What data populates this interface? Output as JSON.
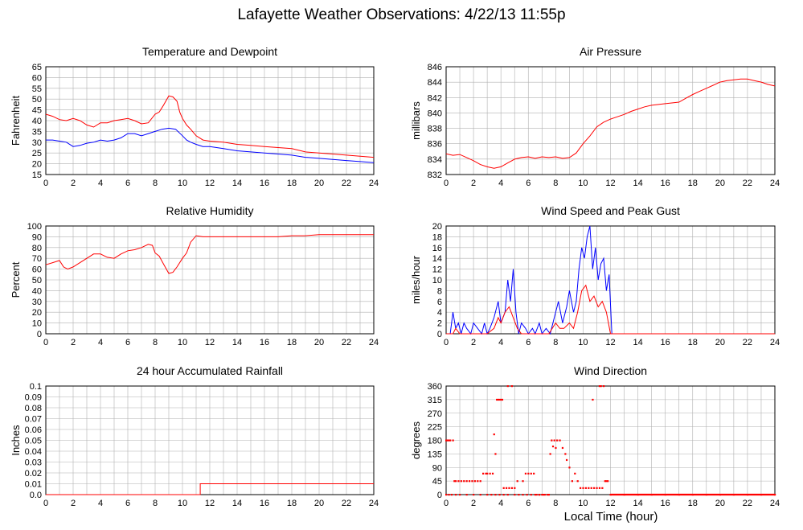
{
  "page": {
    "title": "Lafayette Weather Observations: 4/22/13 11:55p",
    "footer_xlabel": "Local Time (hour)"
  },
  "colors": {
    "red": "#ff0000",
    "blue": "#0000ff",
    "grid": "#b0b0b0",
    "axis": "#000000"
  },
  "chart_data": [
    {
      "type": "line",
      "title": "Temperature and Dewpoint",
      "ylabel": "Fahrenheit",
      "xlabel": "",
      "xlim": [
        0,
        24
      ],
      "ylim": [
        15,
        65
      ],
      "xticks": [
        0,
        2,
        4,
        6,
        8,
        10,
        12,
        14,
        16,
        18,
        20,
        22,
        24
      ],
      "yticks": [
        15,
        20,
        25,
        30,
        35,
        40,
        45,
        50,
        55,
        60,
        65
      ],
      "series": [
        {
          "color": "#ff0000",
          "x": [
            0,
            0.5,
            1,
            1.5,
            2,
            2.5,
            3,
            3.5,
            4,
            4.5,
            5,
            5.5,
            6,
            6.5,
            7,
            7.5,
            8,
            8.3,
            8.6,
            9,
            9.3,
            9.6,
            9.8,
            10,
            10.3,
            10.6,
            11,
            11.5,
            12,
            13,
            14,
            15,
            16,
            17,
            18,
            19,
            20,
            21,
            22,
            23,
            24
          ],
          "y": [
            43,
            42,
            40.5,
            40,
            41,
            40,
            38,
            37,
            39,
            39,
            40,
            40.5,
            41,
            40,
            38.5,
            39,
            43,
            44,
            47,
            51.5,
            51,
            49,
            44,
            41,
            38,
            36,
            33,
            31,
            30.5,
            30,
            29,
            28.5,
            28,
            27.5,
            27,
            25.5,
            25,
            24.5,
            24,
            23.5,
            23
          ]
        },
        {
          "color": "#0000ff",
          "x": [
            0,
            0.5,
            1,
            1.5,
            2,
            2.5,
            3,
            3.5,
            4,
            4.5,
            5,
            5.5,
            6,
            6.5,
            7,
            7.5,
            8,
            8.5,
            9,
            9.5,
            10,
            10.3,
            10.6,
            11,
            11.5,
            12,
            13,
            14,
            15,
            16,
            17,
            18,
            19,
            20,
            21,
            22,
            23,
            24
          ],
          "y": [
            31,
            31,
            30.5,
            30,
            28,
            28.5,
            29.5,
            30,
            31,
            30.5,
            31,
            32,
            34,
            34,
            33,
            34,
            35,
            36,
            36.5,
            36,
            33,
            31,
            30,
            29,
            28,
            28,
            27,
            26,
            25.5,
            25,
            24.5,
            24,
            23,
            22.5,
            22,
            21.5,
            21,
            20.5
          ]
        }
      ]
    },
    {
      "type": "line",
      "title": "Air Pressure",
      "ylabel": "millibars",
      "xlabel": "",
      "xlim": [
        0,
        24
      ],
      "ylim": [
        832,
        846
      ],
      "xticks": [
        0,
        2,
        4,
        6,
        8,
        10,
        12,
        14,
        16,
        18,
        20,
        22,
        24
      ],
      "yticks": [
        832,
        834,
        836,
        838,
        840,
        842,
        844,
        846
      ],
      "series": [
        {
          "color": "#ff0000",
          "x": [
            0,
            0.5,
            1,
            1.5,
            2,
            2.5,
            3,
            3.5,
            4,
            4.5,
            5,
            5.5,
            6,
            6.5,
            7,
            7.5,
            8,
            8.5,
            9,
            9.5,
            10,
            10.5,
            11,
            11.5,
            12,
            12.5,
            13,
            13.5,
            14,
            14.5,
            15,
            16,
            17,
            17.5,
            18,
            18.5,
            19,
            19.5,
            20,
            20.5,
            21,
            21.5,
            22,
            22.5,
            23,
            23.5,
            24
          ],
          "y": [
            834.7,
            834.5,
            834.6,
            834.2,
            833.8,
            833.3,
            833,
            832.8,
            833,
            833.5,
            834,
            834.2,
            834.3,
            834.1,
            834.3,
            834.2,
            834.3,
            834.1,
            834.2,
            834.8,
            836,
            837,
            838.2,
            838.8,
            839.2,
            839.5,
            839.8,
            840.2,
            840.5,
            840.8,
            841,
            841.2,
            841.4,
            841.9,
            842.4,
            842.8,
            843.2,
            843.6,
            844,
            844.2,
            844.3,
            844.4,
            844.4,
            844.2,
            844,
            843.7,
            843.5
          ]
        }
      ]
    },
    {
      "type": "line",
      "title": "Relative Humidity",
      "ylabel": "Percent",
      "xlabel": "",
      "xlim": [
        0,
        24
      ],
      "ylim": [
        0,
        100
      ],
      "xticks": [
        0,
        2,
        4,
        6,
        8,
        10,
        12,
        14,
        16,
        18,
        20,
        22,
        24
      ],
      "yticks": [
        0,
        10,
        20,
        30,
        40,
        50,
        60,
        70,
        80,
        90,
        100
      ],
      "series": [
        {
          "color": "#ff0000",
          "x": [
            0,
            0.5,
            1,
            1.3,
            1.6,
            2,
            2.5,
            3,
            3.5,
            4,
            4.5,
            5,
            5.5,
            6,
            6.5,
            7,
            7.5,
            7.8,
            8,
            8.3,
            8.6,
            9,
            9.3,
            9.6,
            10,
            10.3,
            10.6,
            11,
            11.5,
            12,
            13,
            14,
            15,
            16,
            17,
            18,
            19,
            20,
            21,
            22,
            23,
            24
          ],
          "y": [
            64,
            66,
            68,
            62,
            60,
            62,
            66,
            70,
            74,
            74,
            71,
            70,
            74,
            77,
            78,
            80,
            83,
            82,
            75,
            72,
            65,
            56,
            57,
            62,
            70,
            75,
            85,
            91,
            90,
            90,
            90,
            90,
            90,
            90,
            90,
            91,
            91,
            92,
            92,
            92,
            92,
            92
          ]
        }
      ]
    },
    {
      "type": "line",
      "title": "Wind Speed and Peak Gust",
      "ylabel": "miles/hour",
      "xlabel": "",
      "xlim": [
        0,
        24
      ],
      "ylim": [
        0,
        20
      ],
      "xticks": [
        0,
        2,
        4,
        6,
        8,
        10,
        12,
        14,
        16,
        18,
        20,
        22,
        24
      ],
      "yticks": [
        0,
        2,
        4,
        6,
        8,
        10,
        12,
        14,
        16,
        18,
        20
      ],
      "series": [
        {
          "color": "#0000ff",
          "x": [
            0,
            0.3,
            0.5,
            0.7,
            0.9,
            1.1,
            1.3,
            1.5,
            1.8,
            2.0,
            2.3,
            2.6,
            2.8,
            3.0,
            3.2,
            3.5,
            3.8,
            4.0,
            4.3,
            4.5,
            4.7,
            4.9,
            5.1,
            5.3,
            5.5,
            5.8,
            6.0,
            6.3,
            6.5,
            6.8,
            7.0,
            7.3,
            7.6,
            7.9,
            8.2,
            8.5,
            8.8,
            9.0,
            9.3,
            9.5,
            9.7,
            9.9,
            10.1,
            10.3,
            10.5,
            10.7,
            10.9,
            11.1,
            11.3,
            11.5,
            11.7,
            11.9,
            12.1,
            12.5,
            24
          ],
          "y": [
            0,
            0,
            4,
            1,
            2,
            0,
            2,
            1,
            0,
            2,
            1,
            0,
            2,
            0,
            1,
            3,
            6,
            2,
            4,
            10,
            6,
            12,
            4,
            0,
            2,
            1,
            0,
            1,
            0,
            2,
            0,
            1,
            0,
            3,
            6,
            2,
            5,
            8,
            4,
            6,
            12,
            16,
            14,
            18,
            20,
            12,
            16,
            10,
            13,
            14,
            8,
            11,
            0,
            0,
            0
          ]
        },
        {
          "color": "#ff0000",
          "x": [
            0,
            0.5,
            0.7,
            1.0,
            1.5,
            2.0,
            2.5,
            3.0,
            3.5,
            3.8,
            4.0,
            4.3,
            4.6,
            4.9,
            5.2,
            5.5,
            6.0,
            7.0,
            7.5,
            8.0,
            8.3,
            8.6,
            9.0,
            9.3,
            9.6,
            9.9,
            10.2,
            10.5,
            10.8,
            11.1,
            11.4,
            11.7,
            12.0,
            12.5,
            24
          ],
          "y": [
            0,
            0,
            1,
            0,
            0,
            0,
            0,
            0,
            1,
            3,
            2,
            4,
            5,
            3,
            1,
            0,
            0,
            0,
            0,
            2,
            1,
            1,
            2,
            1,
            4,
            8,
            9,
            6,
            7,
            5,
            6,
            4,
            0,
            0,
            0
          ]
        }
      ]
    },
    {
      "type": "line",
      "title": "24 hour Accumulated Rainfall",
      "ylabel": "Inches",
      "xlabel": "",
      "xlim": [
        0,
        24
      ],
      "ylim": [
        0,
        0.1
      ],
      "xticks": [
        0,
        2,
        4,
        6,
        8,
        10,
        12,
        14,
        16,
        18,
        20,
        22,
        24
      ],
      "yticks": [
        "0.0",
        "0.01",
        "0.02",
        "0.03",
        "0.04",
        "0.05",
        "0.06",
        "0.07",
        "0.08",
        "0.09",
        "0.1"
      ],
      "series": [
        {
          "color": "#ff0000",
          "x": [
            0,
            11.3,
            11.3,
            24
          ],
          "y": [
            0,
            0,
            0.01,
            0.01
          ]
        }
      ]
    },
    {
      "type": "scatter",
      "title": "Wind Direction",
      "ylabel": "degrees",
      "xlabel": "Local Time (hour)",
      "xlim": [
        0,
        24
      ],
      "ylim": [
        0,
        360
      ],
      "xticks": [
        0,
        2,
        4,
        6,
        8,
        10,
        12,
        14,
        16,
        18,
        20,
        22,
        24
      ],
      "yticks": [
        0,
        45,
        90,
        135,
        180,
        225,
        270,
        315,
        360
      ],
      "series": [
        {
          "color": "#ff0000",
          "x": [
            0.0,
            0.1,
            0.2,
            0.3,
            0.5,
            0.0,
            0.2,
            0.4,
            0.6,
            0.7,
            0.9,
            1.1,
            1.3,
            1.5,
            1.7,
            1.9,
            2.1,
            2.3,
            2.5,
            2.7,
            2.9,
            3.0,
            3.2,
            3.4,
            3.5,
            3.6,
            3.7,
            3.8,
            3.9,
            4.0,
            4.1,
            4.2,
            4.4,
            4.6,
            4.8,
            5.0,
            4.5,
            4.8,
            5.2,
            5.6,
            5.8,
            6.0,
            6.2,
            6.4,
            6.6,
            6.8,
            7.0,
            7.2,
            7.5,
            7.6,
            7.7,
            7.8,
            7.9,
            8.0,
            8.1,
            8.3,
            8.5,
            8.7,
            8.8,
            9.0,
            9.2,
            9.4,
            9.6,
            9.8,
            10.0,
            10.2,
            10.4,
            10.6,
            10.8,
            11.0,
            11.2,
            11.4,
            11.6,
            11.8,
            10.7,
            11.2,
            11.3,
            11.5,
            11.7,
            12.0,
            13,
            14,
            15,
            16,
            17,
            18,
            19,
            20,
            21,
            22,
            23,
            24,
            0.7,
            1.0,
            1.5,
            2.0,
            2.5,
            3.0,
            3.3,
            3.6,
            3.9,
            4.2,
            4.5,
            5.0,
            5.3,
            5.6,
            5.9,
            6.2,
            6.5,
            6.8,
            7.1,
            7.4
          ],
          "y": [
            180,
            180,
            180,
            180,
            180,
            0,
            0,
            0,
            45,
            45,
            45,
            45,
            45,
            45,
            45,
            45,
            45,
            45,
            45,
            70,
            70,
            70,
            70,
            70,
            200,
            135,
            315,
            315,
            315,
            315,
            315,
            22,
            22,
            22,
            22,
            22,
            360,
            360,
            45,
            45,
            70,
            70,
            70,
            70,
            0,
            0,
            0,
            0,
            0,
            135,
            180,
            160,
            180,
            155,
            180,
            180,
            155,
            135,
            115,
            90,
            45,
            70,
            45,
            22,
            22,
            22,
            22,
            22,
            22,
            22,
            22,
            22,
            45,
            45,
            315,
            360,
            360,
            360,
            45,
            0,
            0,
            0,
            0,
            0,
            0,
            0,
            0,
            0,
            0,
            0,
            0,
            0,
            0,
            0,
            0,
            0,
            0,
            0,
            0,
            0,
            0,
            0,
            0,
            0,
            0,
            0,
            0,
            0,
            0,
            0,
            0,
            0
          ]
        }
      ]
    }
  ]
}
